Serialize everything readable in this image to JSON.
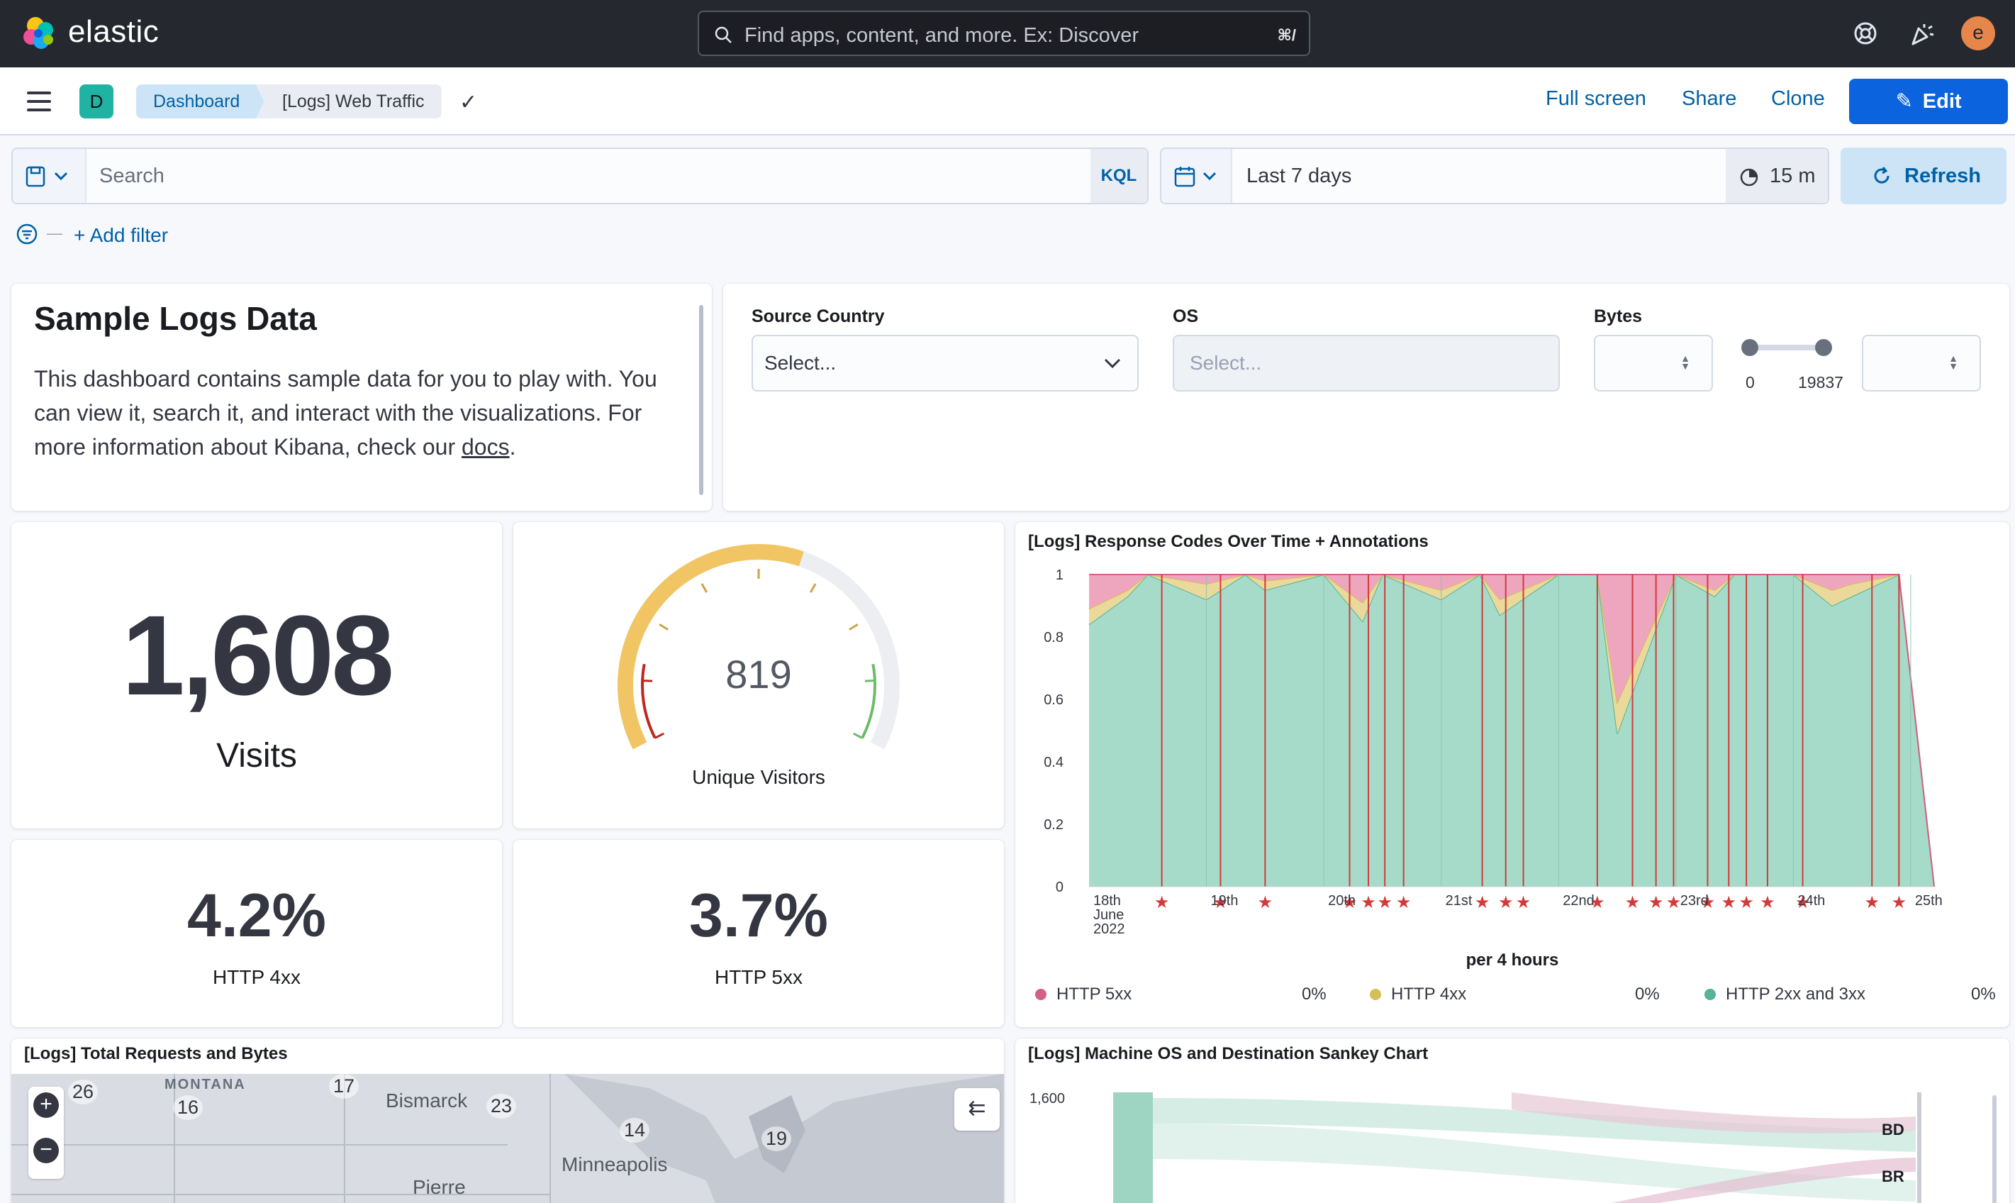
{
  "header": {
    "logo_text": "elastic",
    "search_placeholder": "Find apps, content, and more. Ex: Discover",
    "search_shortcut": "⌘/",
    "avatar_initial": "e"
  },
  "breadcrumbs": {
    "space_initial": "D",
    "items": [
      "Dashboard",
      "[Logs] Web Traffic"
    ]
  },
  "actions": {
    "full_screen": "Full screen",
    "share": "Share",
    "clone": "Clone",
    "edit": "Edit"
  },
  "query": {
    "placeholder": "Search",
    "language": "KQL",
    "date_range": "Last 7 days",
    "refresh_interval": "15 m",
    "refresh_label": "Refresh",
    "add_filter": "+ Add filter"
  },
  "markdown_panel": {
    "title": "Sample Logs Data",
    "body_before_link": "This dashboard contains sample data for you to play with. You can view it, search it, and interact with the visualizations. For more information about Kibana, check our ",
    "link_text": "docs",
    "body_after_link": "."
  },
  "controls": {
    "source_country": {
      "label": "Source Country",
      "placeholder": "Select..."
    },
    "os": {
      "label": "OS",
      "placeholder": "Select..."
    },
    "bytes": {
      "label": "Bytes",
      "min": "0",
      "max": "19837"
    }
  },
  "metrics": {
    "visits": {
      "value": "1,608",
      "label": "Visits"
    },
    "unique_visitors": {
      "value": "819",
      "label": "Unique Visitors",
      "gauge_fraction": 0.58
    },
    "http_4xx": {
      "value": "4.2%",
      "label": "HTTP 4xx"
    },
    "http_5xx": {
      "value": "3.7%",
      "label": "HTTP 5xx"
    }
  },
  "response_codes_panel": {
    "title": "[Logs] Response Codes Over Time + Annotations",
    "legend": [
      {
        "name": "HTTP 5xx",
        "value": "0%",
        "color": "#d36086"
      },
      {
        "name": "HTTP 4xx",
        "value": "0%",
        "color": "#d6bf57"
      },
      {
        "name": "HTTP 2xx and 3xx",
        "value": "0%",
        "color": "#54b399"
      }
    ]
  },
  "chart_data": {
    "type": "area",
    "stacked": "percentage",
    "xlabel": "per 4 hours",
    "ylim": [
      0,
      1
    ],
    "y_ticks": [
      "0",
      "0.2",
      "0.4",
      "0.6",
      "0.8",
      "1"
    ],
    "x_ticks": [
      "18th June 2022",
      "19th",
      "20th",
      "21st",
      "22nd",
      "23rd",
      "24th",
      "25th"
    ],
    "x": [
      0,
      0.33,
      0.5,
      1,
      1.33,
      1.5,
      2,
      2.33,
      2.5,
      3,
      3.33,
      3.5,
      4,
      4.33,
      4.5,
      5,
      5.33,
      5.5,
      6,
      6.33,
      6.5,
      6.9,
      7.2
    ],
    "series": [
      {
        "name": "HTTP 2xx and 3xx",
        "values": [
          0.84,
          0.93,
          1.0,
          0.92,
          1.0,
          0.95,
          1.0,
          0.85,
          1.0,
          0.92,
          1.0,
          0.87,
          1.0,
          1.0,
          0.49,
          1.0,
          0.93,
          1.0,
          1.0,
          0.9,
          0.93,
          1.0,
          0.0
        ]
      },
      {
        "name": "HTTP 4xx",
        "values": [
          0.05,
          0.02,
          0.0,
          0.05,
          0.0,
          0.03,
          0.0,
          0.06,
          0.0,
          0.03,
          0.0,
          0.05,
          0.0,
          0.0,
          0.1,
          0.0,
          0.02,
          0.0,
          0.0,
          0.05,
          0.04,
          0.0,
          0.0
        ]
      },
      {
        "name": "HTTP 5xx",
        "values": [
          0.11,
          0.05,
          0.0,
          0.03,
          0.0,
          0.02,
          0.0,
          0.09,
          0.0,
          0.05,
          0.0,
          0.08,
          0.0,
          0.0,
          0.41,
          0.0,
          0.05,
          0.0,
          0.0,
          0.05,
          0.03,
          0.0,
          0.0
        ]
      }
    ],
    "annotations": [
      0.62,
      1.12,
      1.5,
      2.22,
      2.38,
      2.52,
      2.68,
      3.35,
      3.55,
      3.7,
      4.33,
      4.63,
      4.83,
      4.98,
      5.27,
      5.45,
      5.6,
      5.78,
      6.08,
      6.67,
      6.9
    ]
  },
  "requests_map_panel": {
    "title": "[Logs] Total Requests and Bytes",
    "labels": {
      "montana": "MONTANA",
      "bismarck": "Bismarck",
      "minneapolis": "Minneapolis",
      "pierre": "Pierre"
    },
    "clusters": [
      "26",
      "16",
      "17",
      "23",
      "14",
      "19"
    ]
  },
  "sankey_panel": {
    "title": "[Logs] Machine OS and Destination Sankey Chart",
    "y_label": "1,600",
    "nodes": [
      "BD",
      "BR"
    ]
  }
}
